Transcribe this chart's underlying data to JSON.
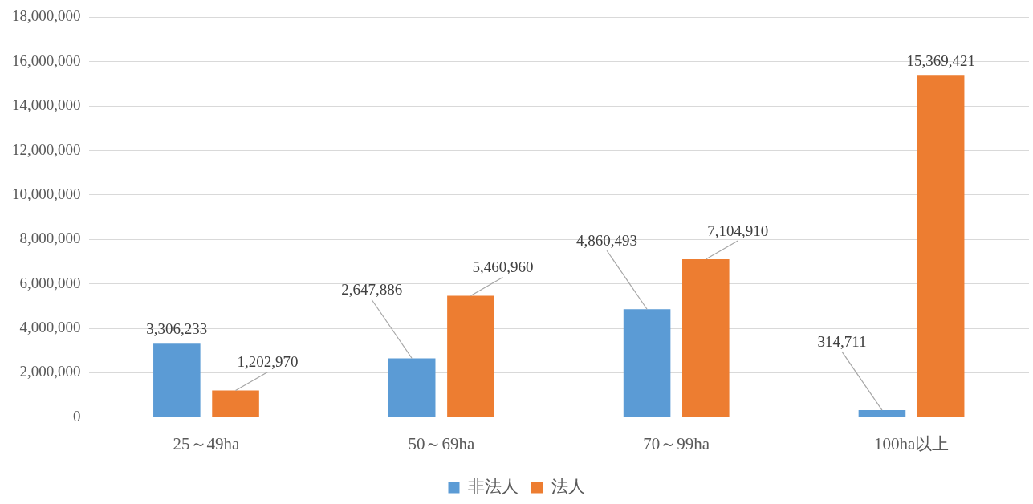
{
  "chart_data": {
    "type": "bar",
    "categories": [
      "25～49ha",
      "50～69ha",
      "70～99ha",
      "100ha以上"
    ],
    "series": [
      {
        "name": "非法人",
        "color": "#5b9bd5",
        "values": [
          3306233,
          2647886,
          4860493,
          314711
        ],
        "value_labels": [
          "3,306,233",
          "2,647,886",
          "4,860,493",
          "314,711"
        ]
      },
      {
        "name": "法人",
        "color": "#ed7d31",
        "values": [
          1202970,
          5460960,
          7104910,
          15369421
        ],
        "value_labels": [
          "1,202,970",
          "5,460,960",
          "7,104,910",
          "15,369,421"
        ]
      }
    ],
    "ylim": [
      0,
      18000000
    ],
    "yticks": [
      {
        "value": 0,
        "label": "0"
      },
      {
        "value": 2000000,
        "label": "2,000,000"
      },
      {
        "value": 4000000,
        "label": "4,000,000"
      },
      {
        "value": 6000000,
        "label": "6,000,000"
      },
      {
        "value": 8000000,
        "label": "8,000,000"
      },
      {
        "value": 10000000,
        "label": "10,000,000"
      },
      {
        "value": 12000000,
        "label": "12,000,000"
      },
      {
        "value": 14000000,
        "label": "14,000,000"
      },
      {
        "value": 16000000,
        "label": "16,000,000"
      },
      {
        "value": 18000000,
        "label": "18,000,000"
      }
    ],
    "grid": "y",
    "legend": "bottom"
  }
}
